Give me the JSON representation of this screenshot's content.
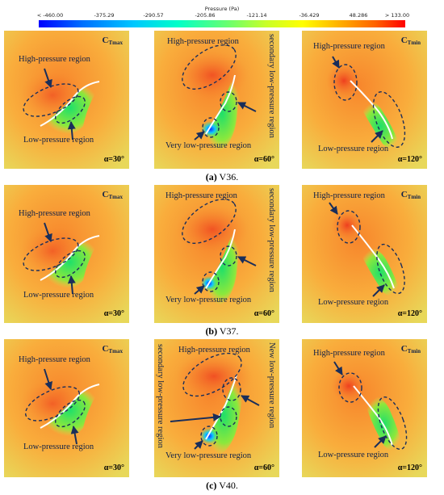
{
  "colorbar": {
    "title": "Pressure (Pa)",
    "ticks": [
      "< -460.00",
      "-375.29",
      "-290.57",
      "-205.86",
      "-121.14",
      "-36.429",
      "48.286",
      "> 133.00"
    ]
  },
  "labels": {
    "high": "High-pressure region",
    "low": "Low-pressure region",
    "very_low": "Very low-pressure region",
    "secondary_low": "secondary low-pressure region",
    "new_low": "New low-pressure region",
    "ct_max_base": "C",
    "ct_max_sub": "Tmax",
    "ct_min_base": "C",
    "ct_min_sub": "Tmin",
    "alpha30": "α=30°",
    "alpha60": "α=60°",
    "alpha120": "α=120°"
  },
  "captions": {
    "a_letter": "(a)",
    "a_text": " V36.",
    "b_letter": "(b)",
    "b_text": " V37.",
    "c_letter": "(c)",
    "c_text": " V40."
  },
  "colors": {
    "arrow": "#1a2e5a",
    "background": "#f7a23a",
    "high": "#e8321e",
    "low": "#3ee65a"
  }
}
